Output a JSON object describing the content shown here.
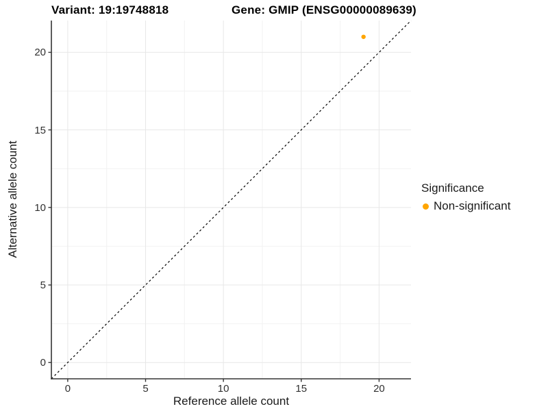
{
  "chart_data": {
    "type": "scatter",
    "title_left": "Variant: 19:19748818",
    "title_right": "Gene: GMIP (ENSG00000089639)",
    "xlabel": "Reference allele count",
    "ylabel": "Alternative allele count",
    "xlim": [
      -1.05,
      22.05
    ],
    "ylim": [
      -1.05,
      22.05
    ],
    "x_ticks": [
      0,
      5,
      10,
      15,
      20
    ],
    "y_ticks": [
      0,
      5,
      10,
      15,
      20
    ],
    "x_minor_ticks": [
      2.5,
      7.5,
      12.5,
      17.5
    ],
    "y_minor_ticks": [
      2.5,
      7.5,
      12.5,
      17.5
    ],
    "grid": "major+minor",
    "points": [
      {
        "x": 19,
        "y": 21,
        "series": "Non-significant",
        "color": "#FFA500"
      }
    ],
    "reference_line": {
      "type": "identity",
      "equation": "y = x",
      "style": "dashed",
      "color": "#000000"
    },
    "legend": {
      "title": "Significance",
      "position": "right",
      "entries": [
        {
          "label": "Non-significant",
          "color": "#FFA500",
          "marker": "circle"
        }
      ]
    },
    "colors": {
      "major_grid": "#E7E7E7",
      "minor_grid": "#F2F2F2",
      "axis_line": "#333333",
      "tick_mark": "#333333",
      "tick_label": "#303030",
      "text": "#1A1A1A",
      "background": "#FFFFFF"
    }
  }
}
